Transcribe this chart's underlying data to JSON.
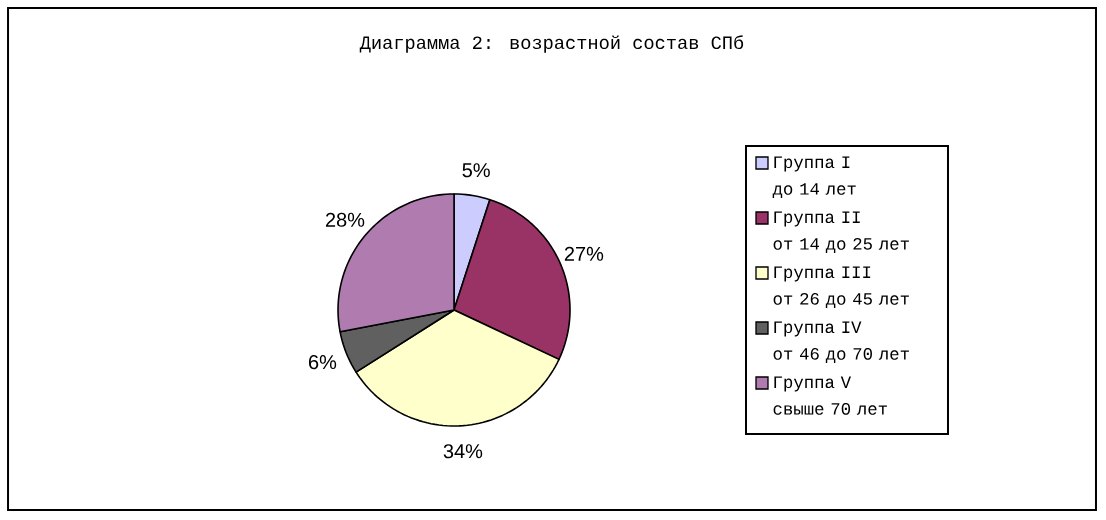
{
  "chart_data": {
    "type": "pie",
    "title": "Диаграмма 2: возрастной состав СПб",
    "categories": [
      "Группа I\nдо 14 лет",
      "Группа II\nот 14 до 25 лет",
      "Группа III\nот 26 до 45 лет",
      "Группа IV\nот 46 до 70 лет",
      "Группа V\nсвыше 70 лет"
    ],
    "values": [
      5,
      27,
      34,
      6,
      28
    ],
    "colors": [
      "#ccccff",
      "#993366",
      "#ffffcc",
      "#606060",
      "#b07cb0"
    ],
    "value_labels": [
      "5%",
      "27%",
      "34%",
      "6%",
      "28%"
    ],
    "legend": "right"
  }
}
